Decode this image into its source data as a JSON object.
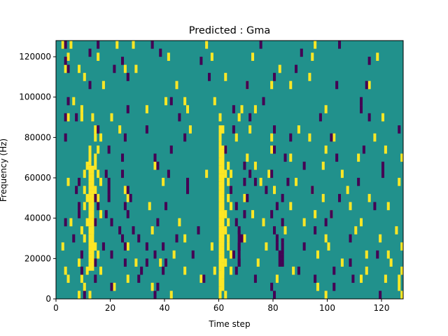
{
  "chart_data": {
    "type": "heatmap",
    "title": "Predicted : Gma",
    "xlabel": "Time step",
    "ylabel": "Frequency (Hz)",
    "xlim": [
      0,
      128
    ],
    "ylim": [
      0,
      128000
    ],
    "x_ticks": [
      0,
      20,
      40,
      60,
      80,
      100,
      120
    ],
    "y_ticks": [
      0,
      20000,
      40000,
      60000,
      80000,
      100000,
      120000
    ],
    "x_tick_labels": [
      "0",
      "20",
      "40",
      "60",
      "80",
      "100",
      "120"
    ],
    "y_tick_labels": [
      "0",
      "20000",
      "40000",
      "60000",
      "80000",
      "100000",
      "120000"
    ],
    "grid": false,
    "colormap": [
      "#440154",
      "#21918c",
      "#fde725"
    ],
    "background_value": 0,
    "value_levels": [
      -1,
      0,
      1
    ],
    "positive_cells": [
      [
        2,
        126000
      ],
      [
        5,
        126000
      ],
      [
        22,
        126000
      ],
      [
        28,
        126000
      ],
      [
        55,
        126000
      ],
      [
        95,
        126000
      ],
      [
        4,
        120000
      ],
      [
        15,
        120000
      ],
      [
        41,
        120000
      ],
      [
        57,
        120000
      ],
      [
        72,
        120000
      ],
      [
        94,
        120000
      ],
      [
        118,
        120000
      ],
      [
        3,
        114000
      ],
      [
        8,
        114000
      ],
      [
        25,
        114000
      ],
      [
        29,
        114000
      ],
      [
        82,
        114000
      ],
      [
        10,
        110000
      ],
      [
        62,
        110000
      ],
      [
        93,
        110000
      ],
      [
        17,
        106000
      ],
      [
        44,
        106000
      ],
      [
        70,
        106000
      ],
      [
        79,
        106000
      ],
      [
        86,
        106000
      ],
      [
        115,
        106000
      ],
      [
        6,
        98000
      ],
      [
        40,
        98000
      ],
      [
        47,
        98000
      ],
      [
        58,
        98000
      ],
      [
        9,
        94000
      ],
      [
        33,
        94000
      ],
      [
        48,
        94000
      ],
      [
        68,
        94000
      ],
      [
        73,
        94000
      ],
      [
        99,
        94000
      ],
      [
        4,
        90000
      ],
      [
        9,
        90000
      ],
      [
        13,
        90000
      ],
      [
        20,
        90000
      ],
      [
        60,
        90000
      ],
      [
        67,
        90000
      ],
      [
        120,
        90000
      ],
      [
        14,
        84000
      ],
      [
        23,
        84000
      ],
      [
        49,
        84000
      ],
      [
        61,
        84000
      ],
      [
        71,
        84000
      ],
      [
        89,
        84000
      ],
      [
        14,
        80000
      ],
      [
        16,
        80000
      ],
      [
        60,
        80000
      ],
      [
        66,
        80000
      ],
      [
        79,
        80000
      ],
      [
        93,
        80000
      ],
      [
        102,
        80000
      ],
      [
        117,
        80000
      ],
      [
        12,
        74000
      ],
      [
        15,
        74000
      ],
      [
        60,
        74000
      ],
      [
        62,
        74000
      ],
      [
        79,
        74000
      ],
      [
        99,
        74000
      ],
      [
        121,
        74000
      ],
      [
        12,
        70000
      ],
      [
        14,
        70000
      ],
      [
        61,
        70000
      ],
      [
        70,
        70000
      ],
      [
        86,
        70000
      ],
      [
        111,
        70000
      ],
      [
        127,
        70000
      ],
      [
        11,
        66000
      ],
      [
        14,
        66000
      ],
      [
        36,
        66000
      ],
      [
        61,
        66000
      ],
      [
        63,
        66000
      ],
      [
        73,
        66000
      ],
      [
        98,
        66000
      ],
      [
        10,
        62000
      ],
      [
        15,
        62000
      ],
      [
        55,
        62000
      ],
      [
        62,
        62000
      ],
      [
        64,
        62000
      ],
      [
        78,
        62000
      ],
      [
        105,
        62000
      ],
      [
        4,
        58000
      ],
      [
        13,
        58000
      ],
      [
        16,
        58000
      ],
      [
        39,
        58000
      ],
      [
        61,
        58000
      ],
      [
        63,
        58000
      ],
      [
        75,
        58000
      ],
      [
        88,
        58000
      ],
      [
        126,
        58000
      ],
      [
        10,
        54000
      ],
      [
        14,
        54000
      ],
      [
        25,
        54000
      ],
      [
        61,
        54000
      ],
      [
        64,
        54000
      ],
      [
        80,
        54000
      ],
      [
        94,
        54000
      ],
      [
        107,
        54000
      ],
      [
        11,
        50000
      ],
      [
        15,
        50000
      ],
      [
        26,
        50000
      ],
      [
        60,
        50000
      ],
      [
        63,
        50000
      ],
      [
        69,
        50000
      ],
      [
        98,
        50000
      ],
      [
        115,
        50000
      ],
      [
        10,
        46000
      ],
      [
        13,
        46000
      ],
      [
        34,
        46000
      ],
      [
        61,
        46000
      ],
      [
        64,
        46000
      ],
      [
        86,
        46000
      ],
      [
        108,
        46000
      ],
      [
        122,
        46000
      ],
      [
        12,
        42000
      ],
      [
        16,
        42000
      ],
      [
        60,
        42000
      ],
      [
        62,
        42000
      ],
      [
        72,
        42000
      ],
      [
        95,
        42000
      ],
      [
        101,
        42000
      ],
      [
        5,
        38000
      ],
      [
        11,
        38000
      ],
      [
        14,
        38000
      ],
      [
        45,
        38000
      ],
      [
        61,
        38000
      ],
      [
        63,
        38000
      ],
      [
        76,
        38000
      ],
      [
        91,
        38000
      ],
      [
        112,
        38000
      ],
      [
        9,
        34000
      ],
      [
        13,
        34000
      ],
      [
        35,
        34000
      ],
      [
        60,
        34000
      ],
      [
        62,
        34000
      ],
      [
        84,
        34000
      ],
      [
        110,
        34000
      ],
      [
        125,
        34000
      ],
      [
        10,
        30000
      ],
      [
        12,
        30000
      ],
      [
        47,
        30000
      ],
      [
        61,
        30000
      ],
      [
        63,
        30000
      ],
      [
        69,
        30000
      ],
      [
        99,
        30000
      ],
      [
        119,
        30000
      ],
      [
        2,
        26000
      ],
      [
        13,
        26000
      ],
      [
        14,
        26000
      ],
      [
        26,
        26000
      ],
      [
        57,
        26000
      ],
      [
        60,
        26000
      ],
      [
        63,
        26000
      ],
      [
        77,
        26000
      ],
      [
        100,
        26000
      ],
      [
        127,
        26000
      ],
      [
        13,
        22000
      ],
      [
        15,
        22000
      ],
      [
        43,
        22000
      ],
      [
        61,
        22000
      ],
      [
        64,
        22000
      ],
      [
        96,
        22000
      ],
      [
        114,
        22000
      ],
      [
        122,
        22000
      ],
      [
        8,
        18000
      ],
      [
        13,
        18000
      ],
      [
        29,
        18000
      ],
      [
        38,
        18000
      ],
      [
        60,
        18000
      ],
      [
        62,
        18000
      ],
      [
        74,
        18000
      ],
      [
        105,
        18000
      ],
      [
        123,
        18000
      ],
      [
        3,
        14000
      ],
      [
        11,
        14000
      ],
      [
        16,
        14000
      ],
      [
        47,
        14000
      ],
      [
        58,
        14000
      ],
      [
        61,
        14000
      ],
      [
        64,
        14000
      ],
      [
        87,
        14000
      ],
      [
        114,
        14000
      ],
      [
        127,
        14000
      ],
      [
        4,
        10000
      ],
      [
        9,
        10000
      ],
      [
        26,
        10000
      ],
      [
        53,
        10000
      ],
      [
        60,
        10000
      ],
      [
        81,
        10000
      ],
      [
        112,
        10000
      ],
      [
        121,
        10000
      ],
      [
        126,
        10000
      ],
      [
        10,
        6000
      ],
      [
        21,
        6000
      ],
      [
        35,
        6000
      ],
      [
        61,
        6000
      ],
      [
        96,
        6000
      ],
      [
        126,
        6000
      ],
      [
        8,
        2000
      ],
      [
        12,
        2000
      ],
      [
        42,
        2000
      ],
      [
        60,
        2000
      ],
      [
        62,
        2000
      ],
      [
        99,
        2000
      ],
      [
        127,
        2000
      ]
    ],
    "negative_cells": [
      [
        3,
        126000
      ],
      [
        15,
        126000
      ],
      [
        35,
        126000
      ],
      [
        75,
        126000
      ],
      [
        104,
        126000
      ],
      [
        12,
        122000
      ],
      [
        38,
        122000
      ],
      [
        90,
        122000
      ],
      [
        3,
        118000
      ],
      [
        24,
        118000
      ],
      [
        53,
        118000
      ],
      [
        115,
        118000
      ],
      [
        4,
        114000
      ],
      [
        21,
        114000
      ],
      [
        88,
        114000
      ],
      [
        26,
        110000
      ],
      [
        56,
        110000
      ],
      [
        80,
        110000
      ],
      [
        12,
        106000
      ],
      [
        70,
        106000
      ],
      [
        103,
        106000
      ],
      [
        114,
        106000
      ],
      [
        4,
        98000
      ],
      [
        42,
        98000
      ],
      [
        76,
        98000
      ],
      [
        112,
        98000
      ],
      [
        26,
        94000
      ],
      [
        65,
        94000
      ],
      [
        112,
        94000
      ],
      [
        3,
        90000
      ],
      [
        7,
        90000
      ],
      [
        45,
        90000
      ],
      [
        71,
        90000
      ],
      [
        97,
        90000
      ],
      [
        115,
        90000
      ],
      [
        15,
        84000
      ],
      [
        33,
        84000
      ],
      [
        65,
        84000
      ],
      [
        80,
        84000
      ],
      [
        126,
        84000
      ],
      [
        3,
        80000
      ],
      [
        25,
        80000
      ],
      [
        47,
        80000
      ],
      [
        86,
        80000
      ],
      [
        101,
        80000
      ],
      [
        19,
        74000
      ],
      [
        42,
        74000
      ],
      [
        62,
        74000
      ],
      [
        80,
        74000
      ],
      [
        113,
        74000
      ],
      [
        24,
        70000
      ],
      [
        36,
        70000
      ],
      [
        84,
        70000
      ],
      [
        103,
        70000
      ],
      [
        12,
        66000
      ],
      [
        37,
        66000
      ],
      [
        69,
        66000
      ],
      [
        91,
        66000
      ],
      [
        120,
        66000
      ],
      [
        18,
        62000
      ],
      [
        24,
        62000
      ],
      [
        41,
        62000
      ],
      [
        71,
        62000
      ],
      [
        79,
        62000
      ],
      [
        120,
        62000
      ],
      [
        8,
        58000
      ],
      [
        19,
        58000
      ],
      [
        48,
        58000
      ],
      [
        69,
        58000
      ],
      [
        73,
        58000
      ],
      [
        85,
        58000
      ],
      [
        111,
        58000
      ],
      [
        7,
        54000
      ],
      [
        19,
        54000
      ],
      [
        26,
        54000
      ],
      [
        48,
        54000
      ],
      [
        64,
        54000
      ],
      [
        77,
        54000
      ],
      [
        94,
        54000
      ],
      [
        14,
        50000
      ],
      [
        19,
        50000
      ],
      [
        27,
        50000
      ],
      [
        70,
        50000
      ],
      [
        83,
        50000
      ],
      [
        104,
        50000
      ],
      [
        8,
        46000
      ],
      [
        15,
        46000
      ],
      [
        25,
        46000
      ],
      [
        40,
        46000
      ],
      [
        66,
        46000
      ],
      [
        81,
        46000
      ],
      [
        117,
        46000
      ],
      [
        8,
        42000
      ],
      [
        18,
        42000
      ],
      [
        26,
        42000
      ],
      [
        69,
        42000
      ],
      [
        79,
        42000
      ],
      [
        101,
        42000
      ],
      [
        3,
        38000
      ],
      [
        14,
        38000
      ],
      [
        20,
        38000
      ],
      [
        37,
        38000
      ],
      [
        66,
        38000
      ],
      [
        83,
        38000
      ],
      [
        99,
        38000
      ],
      [
        12,
        34000
      ],
      [
        23,
        34000
      ],
      [
        28,
        34000
      ],
      [
        52,
        34000
      ],
      [
        67,
        34000
      ],
      [
        80,
        34000
      ],
      [
        95,
        34000
      ],
      [
        6,
        30000
      ],
      [
        24,
        30000
      ],
      [
        30,
        30000
      ],
      [
        44,
        30000
      ],
      [
        68,
        30000
      ],
      [
        81,
        30000
      ],
      [
        108,
        30000
      ],
      [
        17,
        26000
      ],
      [
        25,
        26000
      ],
      [
        33,
        26000
      ],
      [
        39,
        26000
      ],
      [
        67,
        26000
      ],
      [
        81,
        26000
      ],
      [
        91,
        26000
      ],
      [
        9,
        22000
      ],
      [
        20,
        22000
      ],
      [
        36,
        22000
      ],
      [
        50,
        22000
      ],
      [
        65,
        22000
      ],
      [
        82,
        22000
      ],
      [
        118,
        22000
      ],
      [
        14,
        18000
      ],
      [
        25,
        18000
      ],
      [
        33,
        18000
      ],
      [
        40,
        18000
      ],
      [
        67,
        18000
      ],
      [
        82,
        18000
      ],
      [
        108,
        18000
      ],
      [
        9,
        14000
      ],
      [
        31,
        14000
      ],
      [
        39,
        14000
      ],
      [
        66,
        14000
      ],
      [
        89,
        14000
      ],
      [
        102,
        14000
      ],
      [
        14,
        10000
      ],
      [
        30,
        10000
      ],
      [
        54,
        10000
      ],
      [
        73,
        10000
      ],
      [
        95,
        10000
      ],
      [
        109,
        10000
      ],
      [
        20,
        6000
      ],
      [
        37,
        6000
      ],
      [
        79,
        6000
      ],
      [
        102,
        6000
      ],
      [
        10,
        2000
      ],
      [
        36,
        2000
      ],
      [
        80,
        2000
      ],
      [
        119,
        2000
      ]
    ],
    "dense_columns": [
      {
        "x": 60,
        "value": 1,
        "y_range": [
          0,
          86000
        ]
      },
      {
        "x": 61,
        "value": 1,
        "y_range": [
          8000,
          76000
        ]
      },
      {
        "x": 12,
        "value": 1,
        "y_range": [
          14000,
          70000
        ]
      },
      {
        "x": 13,
        "value": 1,
        "y_range": [
          14000,
          66000
        ]
      },
      {
        "x": 67,
        "value": -1,
        "y_range": [
          16000,
          34000
        ]
      },
      {
        "x": 83,
        "value": -1,
        "y_range": [
          16000,
          30000
        ]
      }
    ]
  }
}
